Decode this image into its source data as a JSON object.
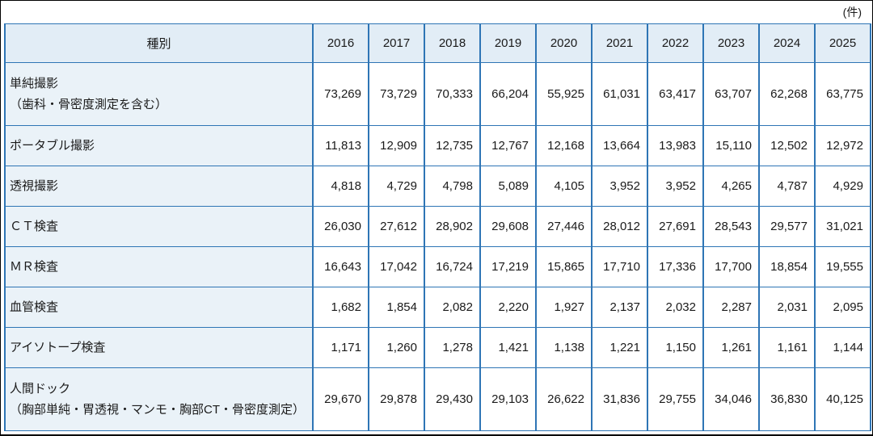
{
  "unit_label": "(件)",
  "colors": {
    "table_border": "#2e75b5",
    "header_fill": "#e2edf6",
    "label_column_fill": "#eaf2f8",
    "data_cell_fill": "#ffffff",
    "frame": "#000000",
    "text": "#1a1a1a"
  },
  "table": {
    "category_header": "種別",
    "years": [
      "2016",
      "2017",
      "2018",
      "2019",
      "2020",
      "2021",
      "2022",
      "2023",
      "2024",
      "2025"
    ],
    "rows": [
      {
        "label": "単純撮影",
        "sublabel": "（歯科・骨密度測定を含む）",
        "values": [
          "73,269",
          "73,729",
          "70,333",
          "66,204",
          "55,925",
          "61,031",
          "63,417",
          "63,707",
          "62,268",
          "63,775"
        ]
      },
      {
        "label": "ポータブル撮影",
        "sublabel": "",
        "values": [
          "11,813",
          "12,909",
          "12,735",
          "12,767",
          "12,168",
          "13,664",
          "13,983",
          "15,110",
          "12,502",
          "12,972"
        ]
      },
      {
        "label": "透視撮影",
        "sublabel": "",
        "values": [
          "4,818",
          "4,729",
          "4,798",
          "5,089",
          "4,105",
          "3,952",
          "3,952",
          "4,265",
          "4,787",
          "4,929"
        ]
      },
      {
        "label": "ＣＴ検査",
        "sublabel": "",
        "values": [
          "26,030",
          "27,612",
          "28,902",
          "29,608",
          "27,446",
          "28,012",
          "27,691",
          "28,543",
          "29,577",
          "31,021"
        ]
      },
      {
        "label": "ＭＲ検査",
        "sublabel": "",
        "values": [
          "16,643",
          "17,042",
          "16,724",
          "17,219",
          "15,865",
          "17,710",
          "17,336",
          "17,700",
          "18,854",
          "19,555"
        ]
      },
      {
        "label": "血管検査",
        "sublabel": "",
        "values": [
          "1,682",
          "1,854",
          "2,082",
          "2,220",
          "1,927",
          "2,137",
          "2,032",
          "2,287",
          "2,031",
          "2,095"
        ]
      },
      {
        "label": "アイソトープ検査",
        "sublabel": "",
        "values": [
          "1,171",
          "1,260",
          "1,278",
          "1,421",
          "1,138",
          "1,221",
          "1,150",
          "1,261",
          "1,161",
          "1,144"
        ]
      },
      {
        "label": "人間ドック",
        "sublabel": "（胸部単純・胃透視・マンモ・胸部CT・骨密度測定）",
        "values": [
          "29,670",
          "29,878",
          "29,430",
          "29,103",
          "26,622",
          "31,836",
          "29,755",
          "34,046",
          "36,830",
          "40,125"
        ]
      }
    ]
  },
  "chart_data": {
    "type": "table",
    "title": "",
    "unit": "件",
    "categories": [
      2016,
      2017,
      2018,
      2019,
      2020,
      2021,
      2022,
      2023,
      2024,
      2025
    ],
    "series": [
      {
        "name": "単純撮影（歯科・骨密度測定を含む）",
        "values": [
          73269,
          73729,
          70333,
          66204,
          55925,
          61031,
          63417,
          63707,
          62268,
          63775
        ]
      },
      {
        "name": "ポータブル撮影",
        "values": [
          11813,
          12909,
          12735,
          12767,
          12168,
          13664,
          13983,
          15110,
          12502,
          12972
        ]
      },
      {
        "name": "透視撮影",
        "values": [
          4818,
          4729,
          4798,
          5089,
          4105,
          3952,
          3952,
          4265,
          4787,
          4929
        ]
      },
      {
        "name": "ＣＴ検査",
        "values": [
          26030,
          27612,
          28902,
          29608,
          27446,
          28012,
          27691,
          28543,
          29577,
          31021
        ]
      },
      {
        "name": "ＭＲ検査",
        "values": [
          16643,
          17042,
          16724,
          17219,
          15865,
          17710,
          17336,
          17700,
          18854,
          19555
        ]
      },
      {
        "name": "血管検査",
        "values": [
          1682,
          1854,
          2082,
          2220,
          1927,
          2137,
          2032,
          2287,
          2031,
          2095
        ]
      },
      {
        "name": "アイソトープ検査",
        "values": [
          1171,
          1260,
          1278,
          1421,
          1138,
          1221,
          1150,
          1261,
          1161,
          1144
        ]
      },
      {
        "name": "人間ドック（胸部単純・胃透視・マンモ・胸部CT・骨密度測定）",
        "values": [
          29670,
          29878,
          29430,
          29103,
          26622,
          31836,
          29755,
          34046,
          36830,
          40125
        ]
      }
    ]
  }
}
